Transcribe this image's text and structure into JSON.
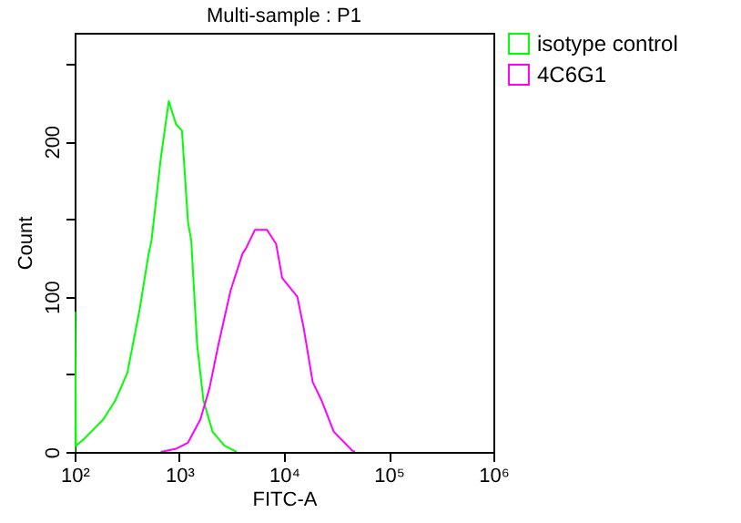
{
  "chart_data": {
    "type": "line",
    "title": "Multi-sample : P1",
    "xlabel": "FITC-A",
    "ylabel": "Count",
    "log": "x",
    "xlim": [
      100,
      1000000
    ],
    "xticks": [
      {
        "value": 100,
        "label": "10²"
      },
      {
        "value": 1000,
        "label": "10³"
      },
      {
        "value": 10000,
        "label": "10⁴"
      },
      {
        "value": 100000,
        "label": "10⁵"
      },
      {
        "value": 1000000,
        "label": "10⁶"
      }
    ],
    "ylim": [
      0,
      270
    ],
    "yticks": [
      0,
      {
        "value": 50,
        "label": null
      },
      100,
      {
        "value": 150,
        "label": null
      },
      200,
      {
        "value": 250,
        "label": null
      }
    ],
    "grid": false,
    "legend": "top right",
    "marker": "none",
    "line_style": "solid",
    "series": [
      {
        "name": "isotype control",
        "color": "#00ff00",
        "x": [
          100,
          101,
          103,
          126,
          188,
          244,
          319,
          418,
          510,
          542,
          665,
          793,
          931,
          1060,
          1210,
          1300,
          1350,
          1480,
          1700,
          2080,
          2700,
          3530
        ],
        "values": [
          0,
          90,
          4,
          9,
          21,
          33,
          51,
          92,
          128,
          136,
          189,
          226,
          211,
          207,
          148,
          136,
          116,
          69,
          33,
          13,
          4,
          0
        ]
      },
      {
        "name": "4C6G1",
        "color": "#ff00ff",
        "x": [
          665,
          931,
          1210,
          1590,
          1940,
          2360,
          3090,
          4030,
          4320,
          5270,
          6890,
          8410,
          9610,
          13400,
          15400,
          18800,
          22900,
          29900,
          44600,
          47600
        ],
        "values": [
          0,
          2,
          6,
          21,
          41,
          69,
          104,
          128,
          131,
          143,
          143,
          134,
          112,
          100,
          80,
          45,
          33,
          13,
          1,
          0
        ]
      }
    ]
  }
}
